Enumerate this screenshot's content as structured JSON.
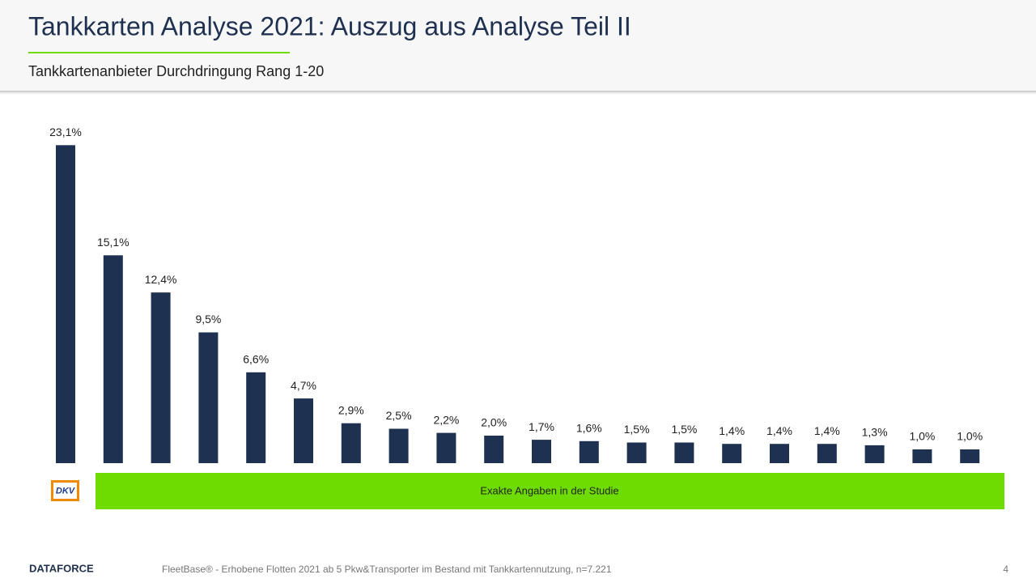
{
  "chart_data": {
    "type": "bar",
    "title": "Tankkarten Analyse 2021: Auszug aus Analyse Teil II",
    "subtitle": "Tankkartenanbieter  Durchdringung  Rang 1-20",
    "values": [
      23.1,
      15.1,
      12.4,
      9.5,
      6.6,
      4.7,
      2.9,
      2.5,
      2.2,
      2.0,
      1.7,
      1.6,
      1.5,
      1.5,
      1.4,
      1.4,
      1.4,
      1.3,
      1.0,
      1.0
    ],
    "value_labels": [
      "23,1%",
      "15,1%",
      "12,4%",
      "9,5%",
      "6,6%",
      "4,7%",
      "2,9%",
      "2,5%",
      "2,2%",
      "2,0%",
      "1,7%",
      "1,6%",
      "1,5%",
      "1,5%",
      "1,4%",
      "1,4%",
      "1,4%",
      "1,3%",
      "1,0%",
      "1,0%"
    ],
    "color": "#1f3150"
  },
  "logo": "DKV",
  "note": "Exakte Angaben in der Studie",
  "footer": {
    "brand": "DATAFORCE",
    "source": "FleetBase® - Erhobene  Flotten 2021 ab 5 Pkw&Transporter  im Bestand mit Tankkartennutzung,  n=7.221",
    "page": "4"
  }
}
